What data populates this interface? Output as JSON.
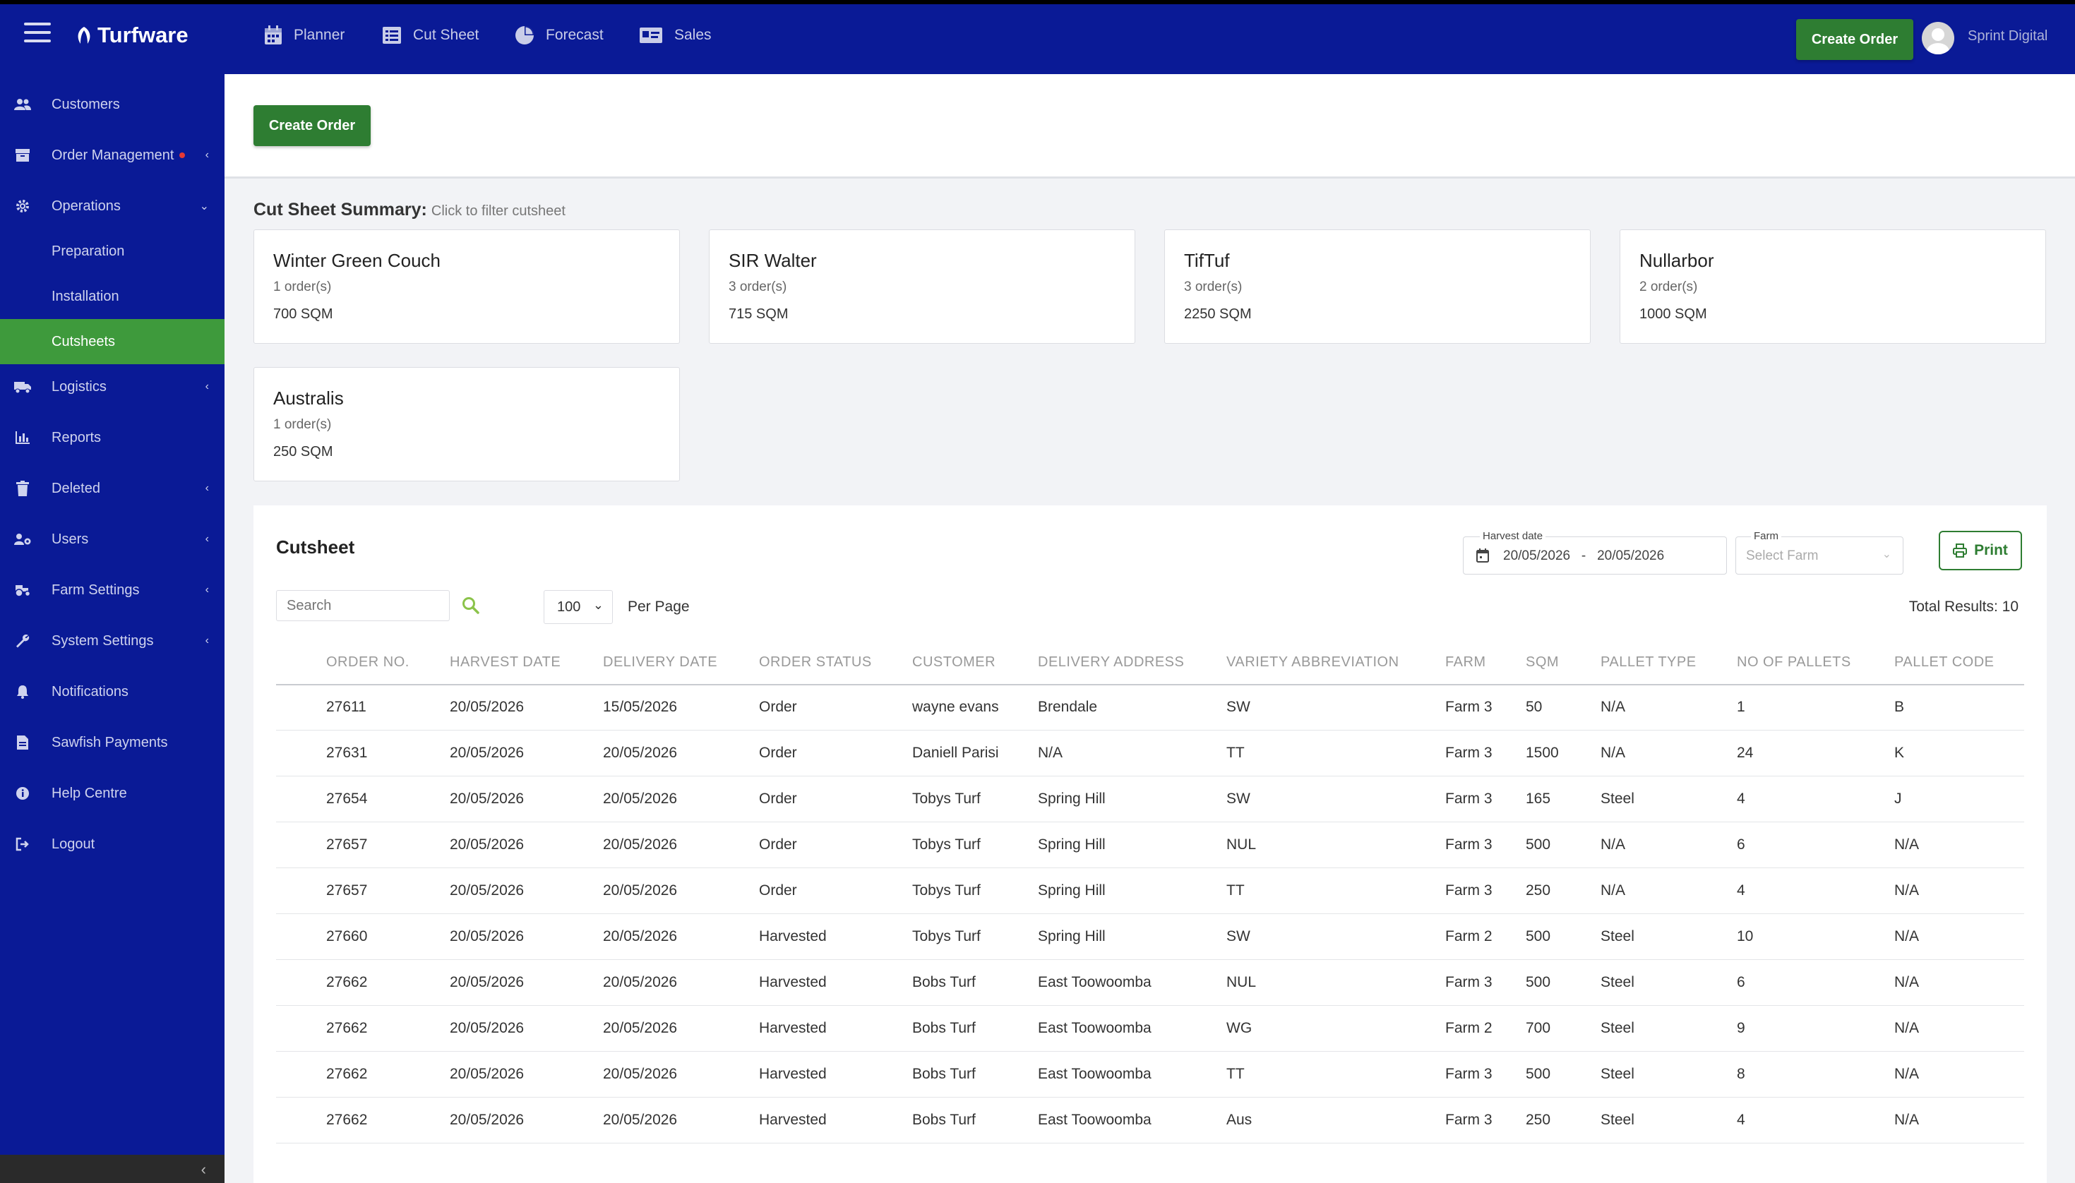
{
  "app": {
    "name": "Turfware",
    "user": "Sprint Digital"
  },
  "colors": {
    "nav": "#0a1a96",
    "accent_green": "#2e7d32",
    "active_green": "#3e9a3c"
  },
  "topnav": [
    {
      "label": "Planner",
      "icon": "calendar-icon"
    },
    {
      "label": "Cut Sheet",
      "icon": "list-icon"
    },
    {
      "label": "Forecast",
      "icon": "pie-chart-icon"
    },
    {
      "label": "Sales",
      "icon": "id-card-icon"
    }
  ],
  "topbar": {
    "create_label": "Create Order"
  },
  "sidebar": {
    "items": [
      {
        "label": "Customers",
        "icon": "users-icon"
      },
      {
        "label": "Order Management",
        "icon": "box-icon"
      },
      {
        "label": "Operations",
        "icon": "gear-icon"
      },
      {
        "label": "Preparation"
      },
      {
        "label": "Installation"
      },
      {
        "label": "Cutsheets"
      },
      {
        "label": "Logistics",
        "icon": "truck-icon"
      },
      {
        "label": "Reports",
        "icon": "bar-chart-icon"
      },
      {
        "label": "Deleted",
        "icon": "trash-icon"
      },
      {
        "label": "Users",
        "icon": "users-cog-icon"
      },
      {
        "label": "Farm Settings",
        "icon": "tractor-icon"
      },
      {
        "label": "System Settings",
        "icon": "wrench-icon"
      },
      {
        "label": "Notifications",
        "icon": "bell-icon"
      },
      {
        "label": "Sawfish Payments",
        "icon": "file-icon"
      },
      {
        "label": "Help Centre",
        "icon": "info-icon"
      },
      {
        "label": "Logout",
        "icon": "logout-icon"
      }
    ]
  },
  "main": {
    "create_label": "Create Order"
  },
  "summary": {
    "title": "Cut Sheet Summary:",
    "hint": "Click to filter cutsheet",
    "cards": [
      {
        "name": "Winter Green Couch",
        "orders": "1 order(s)",
        "sqm": "700 SQM"
      },
      {
        "name": "SIR Walter",
        "orders": "3 order(s)",
        "sqm": "715 SQM"
      },
      {
        "name": "TifTuf",
        "orders": "3 order(s)",
        "sqm": "2250 SQM"
      },
      {
        "name": "Nullarbor",
        "orders": "2 order(s)",
        "sqm": "1000 SQM"
      },
      {
        "name": "Australis",
        "orders": "1 order(s)",
        "sqm": "250 SQM"
      }
    ]
  },
  "cutsheet": {
    "title": "Cutsheet",
    "harvest_label": "Harvest date",
    "harvest_range": "20/05/2026   -   20/05/2026",
    "farm_label": "Farm",
    "farm_placeholder": "Select Farm",
    "print_label": "Print",
    "search_placeholder": "Search",
    "per_page_value": "100",
    "per_page_label": "Per Page",
    "total": "Total Results: 10",
    "columns": [
      "ORDER NO.",
      "HARVEST DATE",
      "DELIVERY DATE",
      "ORDER STATUS",
      "CUSTOMER",
      "DELIVERY ADDRESS",
      "VARIETY ABBREVIATION",
      "FARM",
      "SQM",
      "PALLET TYPE",
      "NO OF PALLETS",
      "PALLET CODE"
    ],
    "rows": [
      [
        "27611",
        "20/05/2026",
        "15/05/2026",
        "Order",
        "wayne evans",
        "Brendale",
        "SW",
        "Farm 3",
        "50",
        "N/A",
        "1",
        "B"
      ],
      [
        "27631",
        "20/05/2026",
        "20/05/2026",
        "Order",
        "Daniell Parisi",
        "N/A",
        "TT",
        "Farm 3",
        "1500",
        "N/A",
        "24",
        "K"
      ],
      [
        "27654",
        "20/05/2026",
        "20/05/2026",
        "Order",
        "Tobys Turf",
        "Spring Hill",
        "SW",
        "Farm 3",
        "165",
        "Steel",
        "4",
        "J"
      ],
      [
        "27657",
        "20/05/2026",
        "20/05/2026",
        "Order",
        "Tobys Turf",
        "Spring Hill",
        "NUL",
        "Farm 3",
        "500",
        "N/A",
        "6",
        "N/A"
      ],
      [
        "27657",
        "20/05/2026",
        "20/05/2026",
        "Order",
        "Tobys Turf",
        "Spring Hill",
        "TT",
        "Farm 3",
        "250",
        "N/A",
        "4",
        "N/A"
      ],
      [
        "27660",
        "20/05/2026",
        "20/05/2026",
        "Harvested",
        "Tobys Turf",
        "Spring Hill",
        "SW",
        "Farm 2",
        "500",
        "Steel",
        "10",
        "N/A"
      ],
      [
        "27662",
        "20/05/2026",
        "20/05/2026",
        "Harvested",
        "Bobs Turf",
        "East Toowoomba",
        "NUL",
        "Farm 3",
        "500",
        "Steel",
        "6",
        "N/A"
      ],
      [
        "27662",
        "20/05/2026",
        "20/05/2026",
        "Harvested",
        "Bobs Turf",
        "East Toowoomba",
        "WG",
        "Farm 2",
        "700",
        "Steel",
        "9",
        "N/A"
      ],
      [
        "27662",
        "20/05/2026",
        "20/05/2026",
        "Harvested",
        "Bobs Turf",
        "East Toowoomba",
        "TT",
        "Farm 3",
        "500",
        "Steel",
        "8",
        "N/A"
      ],
      [
        "27662",
        "20/05/2026",
        "20/05/2026",
        "Harvested",
        "Bobs Turf",
        "East Toowoomba",
        "Aus",
        "Farm 3",
        "250",
        "Steel",
        "4",
        "N/A"
      ]
    ]
  }
}
